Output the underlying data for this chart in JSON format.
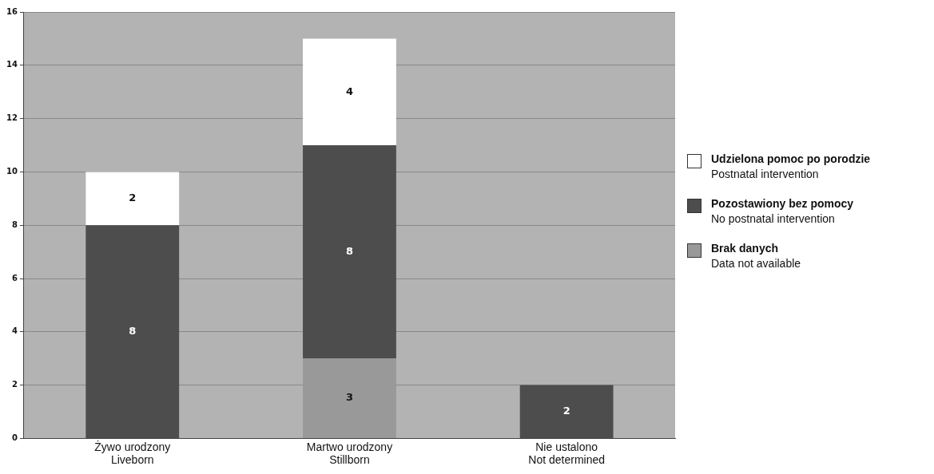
{
  "chart_data": {
    "type": "bar",
    "stacked": true,
    "categories": [
      "Żywo urodzony\nLiveborn",
      "Martwo urodzony\nStillborn",
      "Nie ustalono\nNot determined"
    ],
    "series": [
      {
        "name": "Brak danych\nData not available",
        "color": "#999999",
        "values": [
          null,
          3,
          null
        ]
      },
      {
        "name": "Pozostawiony bez pomocy\nNo postnatal intervention",
        "color": "#4d4d4d",
        "values": [
          8,
          8,
          2
        ]
      },
      {
        "name": "Udzielona pomoc po porodzie\nPostnatal intervention",
        "color": "#ffffff",
        "values": [
          2,
          4,
          null
        ]
      }
    ],
    "ylim": [
      0,
      16
    ],
    "yticks": [
      0,
      2,
      4,
      6,
      8,
      10,
      12,
      14,
      16
    ],
    "grid": true,
    "legend": "right",
    "data_labels": true
  }
}
